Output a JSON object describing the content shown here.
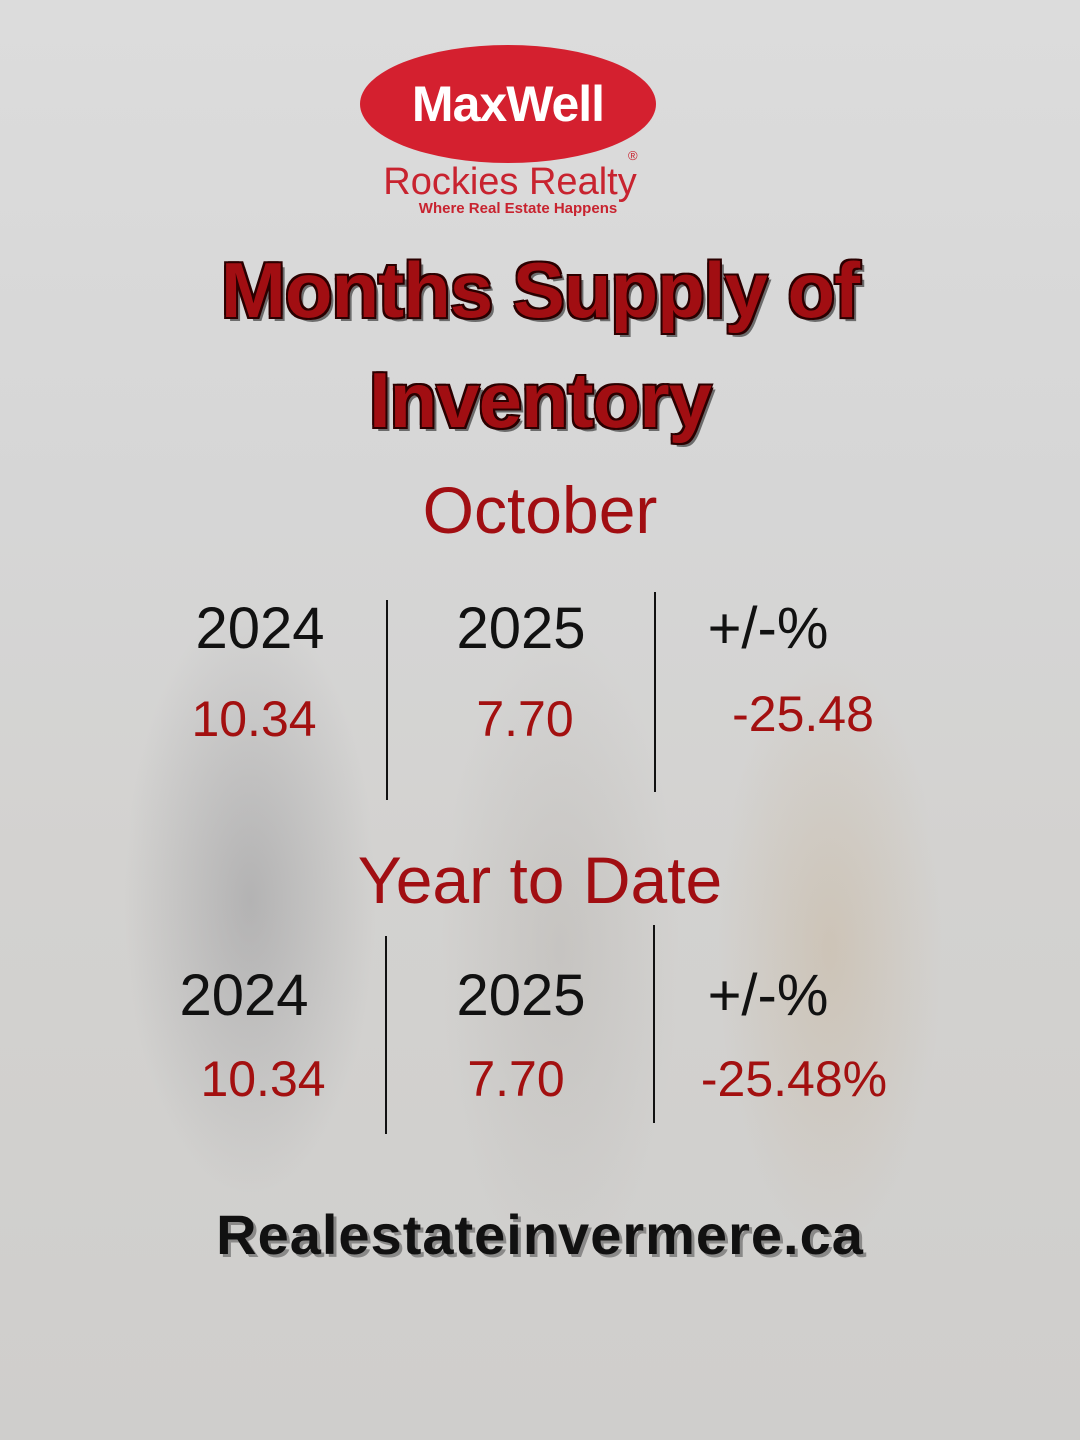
{
  "logo": {
    "brand": "MaxWell",
    "name": "Rockies Realty",
    "tagline": "Where Real Estate Happens",
    "registered": "®",
    "colors": {
      "brand_red": "#d4202f"
    }
  },
  "title": {
    "line1": "Months Supply of",
    "line2": "Inventory"
  },
  "october": {
    "heading": "October",
    "headers": [
      "2024",
      "2025",
      "+/-%"
    ],
    "values": [
      "10.34",
      "7.70",
      "-25.48"
    ]
  },
  "ytd": {
    "heading": "Year to Date",
    "headers": [
      "2024",
      "2025",
      "+/-%"
    ],
    "values": [
      "10.34",
      "7.70",
      "-25.48%"
    ]
  },
  "website": "Realestateinvermere.ca",
  "colors": {
    "title_red": "#a10e12",
    "value_red": "#a31010",
    "text": "#111111"
  }
}
